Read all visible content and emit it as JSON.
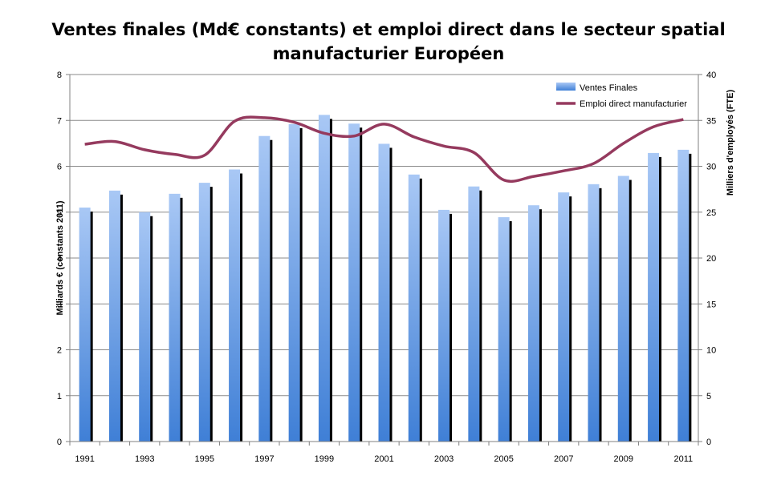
{
  "chart_data": {
    "type": "bar",
    "title_line1": "Ventes finales (Md€ constants) et emploi direct dans le secteur spatial",
    "title_line2": "manufacturier Européen",
    "ylabel_left": "Milliards € (constants 2011)",
    "ylabel_right": "Milliers d'employés (FTE)",
    "ylim_left": [
      0,
      8
    ],
    "ylim_right": [
      0,
      40
    ],
    "yticks_left": [
      "0",
      "1",
      "2",
      "3",
      "4",
      "5",
      "6",
      "7",
      "8"
    ],
    "yticks_right": [
      "0",
      "5",
      "10",
      "15",
      "20",
      "25",
      "30",
      "35",
      "40"
    ],
    "x": [
      1991,
      1992,
      1993,
      1994,
      1995,
      1996,
      1997,
      1998,
      1999,
      2000,
      2001,
      2002,
      2003,
      2004,
      2005,
      2006,
      2007,
      2008,
      2009,
      2010,
      2011
    ],
    "xtick_labels": [
      "1991",
      "1993",
      "1995",
      "1997",
      "1999",
      "2001",
      "2003",
      "2005",
      "2007",
      "2009",
      "2011"
    ],
    "grid": true,
    "legend_position": "top-right",
    "series": [
      {
        "name": "Ventes Finales",
        "type": "bar",
        "axis": "left",
        "color": "#6d9eeb",
        "values": [
          5.1,
          5.47,
          5.0,
          5.4,
          5.64,
          5.93,
          6.66,
          6.92,
          7.12,
          6.93,
          6.49,
          5.82,
          5.05,
          5.56,
          4.89,
          5.15,
          5.43,
          5.61,
          5.79,
          6.29,
          6.36
        ]
      },
      {
        "name": "Emploi direct manufacturier",
        "type": "line",
        "axis": "right",
        "color": "#953a5e",
        "values": [
          32.4,
          32.7,
          31.8,
          31.3,
          31.2,
          34.9,
          35.3,
          34.8,
          33.6,
          33.3,
          34.6,
          33.2,
          32.2,
          31.5,
          28.5,
          28.9,
          29.5,
          30.3,
          32.5,
          34.3,
          35.1
        ]
      }
    ]
  }
}
